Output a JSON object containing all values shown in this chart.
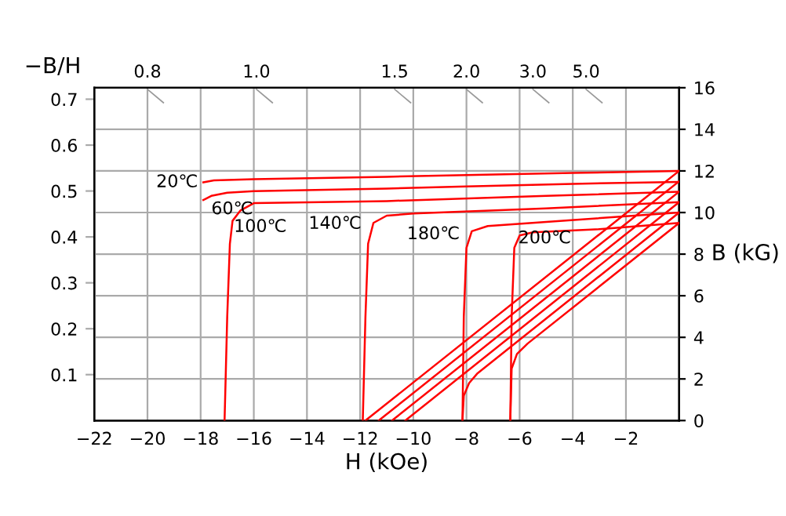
{
  "chart_data": {
    "type": "line",
    "xlabel": "H (kOe)",
    "ylabel": "−B/H",
    "y2label": "B (kG)",
    "xlim": [
      -22,
      0
    ],
    "xticks": [
      -22,
      -20,
      -18,
      -16,
      -14,
      -12,
      -10,
      -8,
      -6,
      -4,
      -2
    ],
    "ylim": [
      0,
      0.725
    ],
    "yticks": [
      0.1,
      0.2,
      0.3,
      0.4,
      0.5,
      0.6,
      0.7
    ],
    "y2lim": [
      0,
      16
    ],
    "y2ticks": [
      0,
      2,
      4,
      6,
      8,
      10,
      12,
      14,
      16
    ],
    "grid": true,
    "line_style": "solid",
    "marker": "none",
    "series": [
      {
        "color": "#ff0000",
        "axis": "y2",
        "x": [
          -17.9,
          -17.5,
          -16,
          -11,
          -8,
          -4,
          0
        ],
        "values": [
          11.45,
          11.55,
          11.6,
          11.72,
          11.8,
          11.9,
          12.0
        ]
      },
      {
        "color": "#ff0000",
        "axis": "y2",
        "x": [
          -17.9,
          -17.6,
          -17,
          -16,
          -11,
          -8,
          -4,
          0
        ],
        "values": [
          10.6,
          10.8,
          10.95,
          11.03,
          11.15,
          11.25,
          11.38,
          11.47
        ]
      },
      {
        "color": "#ff0000",
        "axis": "y2",
        "x": [
          -17.1,
          -17.0,
          -16.9,
          -16.8,
          -16.5,
          -16,
          -11,
          -5,
          0
        ],
        "values": [
          0,
          5,
          8.5,
          9.6,
          10.1,
          10.45,
          10.55,
          10.8,
          11.0
        ]
      },
      {
        "color": "#ff0000",
        "axis": "y2",
        "x": [
          -11.9,
          -11.8,
          -11.7,
          -11.5,
          -11.0,
          -10,
          -5,
          0
        ],
        "values": [
          0,
          5,
          8.5,
          9.5,
          9.85,
          9.95,
          10.2,
          10.5
        ]
      },
      {
        "color": "#ff0000",
        "axis": "y2",
        "x": [
          -8.15,
          -8.1,
          -8.0,
          -7.8,
          -7.2,
          -5,
          0
        ],
        "values": [
          0,
          5,
          8.3,
          9.1,
          9.35,
          9.55,
          10.0
        ]
      },
      {
        "color": "#ff0000",
        "axis": "y2",
        "x": [
          -6.35,
          -6.3,
          -6.2,
          -6.0,
          -5.5,
          -3,
          0
        ],
        "values": [
          0,
          5,
          8.3,
          8.9,
          9.05,
          9.2,
          9.5
        ]
      },
      {
        "color": "#ff0000",
        "axis": "y2",
        "x": [
          -11.8,
          0
        ],
        "values": [
          0,
          12.0
        ]
      },
      {
        "color": "#ff0000",
        "axis": "y2",
        "x": [
          -11.3,
          0
        ],
        "values": [
          0,
          11.5
        ]
      },
      {
        "color": "#ff0000",
        "axis": "y2",
        "x": [
          -10.8,
          0
        ],
        "values": [
          0,
          11.0
        ]
      },
      {
        "color": "#ff0000",
        "axis": "y2",
        "x": [
          -10.3,
          0
        ],
        "values": [
          0,
          10.5
        ]
      },
      {
        "color": "#ff0000",
        "axis": "y2",
        "x": [
          -8.15,
          -8.1,
          -7.9,
          -7.6,
          0
        ],
        "values": [
          0,
          1.2,
          1.8,
          2.25,
          10.0
        ]
      },
      {
        "color": "#ff0000",
        "axis": "y2",
        "x": [
          -6.35,
          -6.3,
          -6.1,
          -5.7,
          0
        ],
        "values": [
          0,
          2.5,
          3.2,
          3.7,
          9.5
        ]
      }
    ],
    "annotations": [
      "0.8",
      "1.0",
      "1.5",
      "2.0",
      "3.0",
      "5.0",
      "20℃",
      "60℃",
      "100℃",
      "140℃",
      "180℃",
      "200℃"
    ]
  }
}
